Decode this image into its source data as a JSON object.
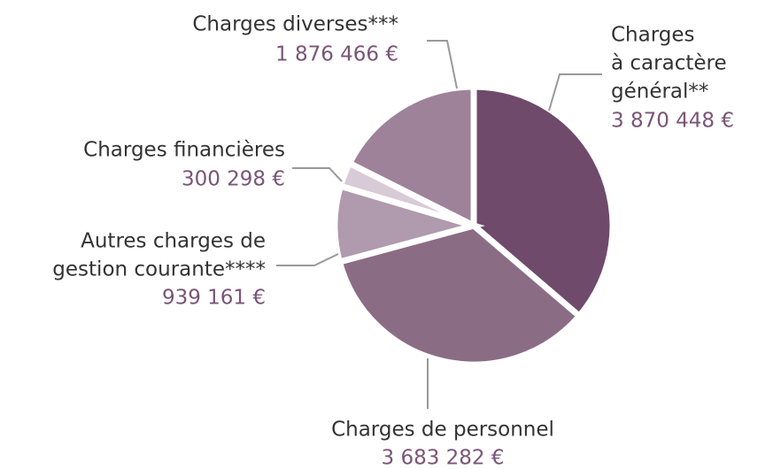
{
  "chart_data": {
    "type": "pie",
    "categories": [
      [
        "Charges",
        "à caractère",
        "général**"
      ],
      [
        "Charges de personnel"
      ],
      [
        "Autres charges de",
        "gestion courante****"
      ],
      [
        "Charges financières"
      ],
      [
        "Charges diverses***"
      ]
    ],
    "values": [
      3870448,
      3683282,
      939161,
      300298,
      1876466
    ],
    "value_labels": [
      "3 870 448 €",
      "3 683 282 €",
      "939 161 €",
      "300 298 €",
      "1 876 466 €"
    ],
    "colors": [
      "#6f4a6b",
      "#8b6c85",
      "#b09aad",
      "#d8cad6",
      "#9e8299"
    ]
  }
}
